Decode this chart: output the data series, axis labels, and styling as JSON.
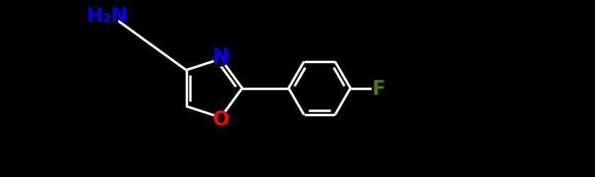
{
  "bg_color": "#000000",
  "bond_color": "#ffffff",
  "N_color": "#0000ee",
  "O_color": "#ff0000",
  "F_color": "#4a7a00",
  "font_size_atom": 20,
  "line_width": 2.5,
  "figsize": [
    8.39,
    2.51
  ],
  "dpi": 100,
  "xlim": [
    0,
    10
  ],
  "ylim": [
    0,
    3
  ]
}
